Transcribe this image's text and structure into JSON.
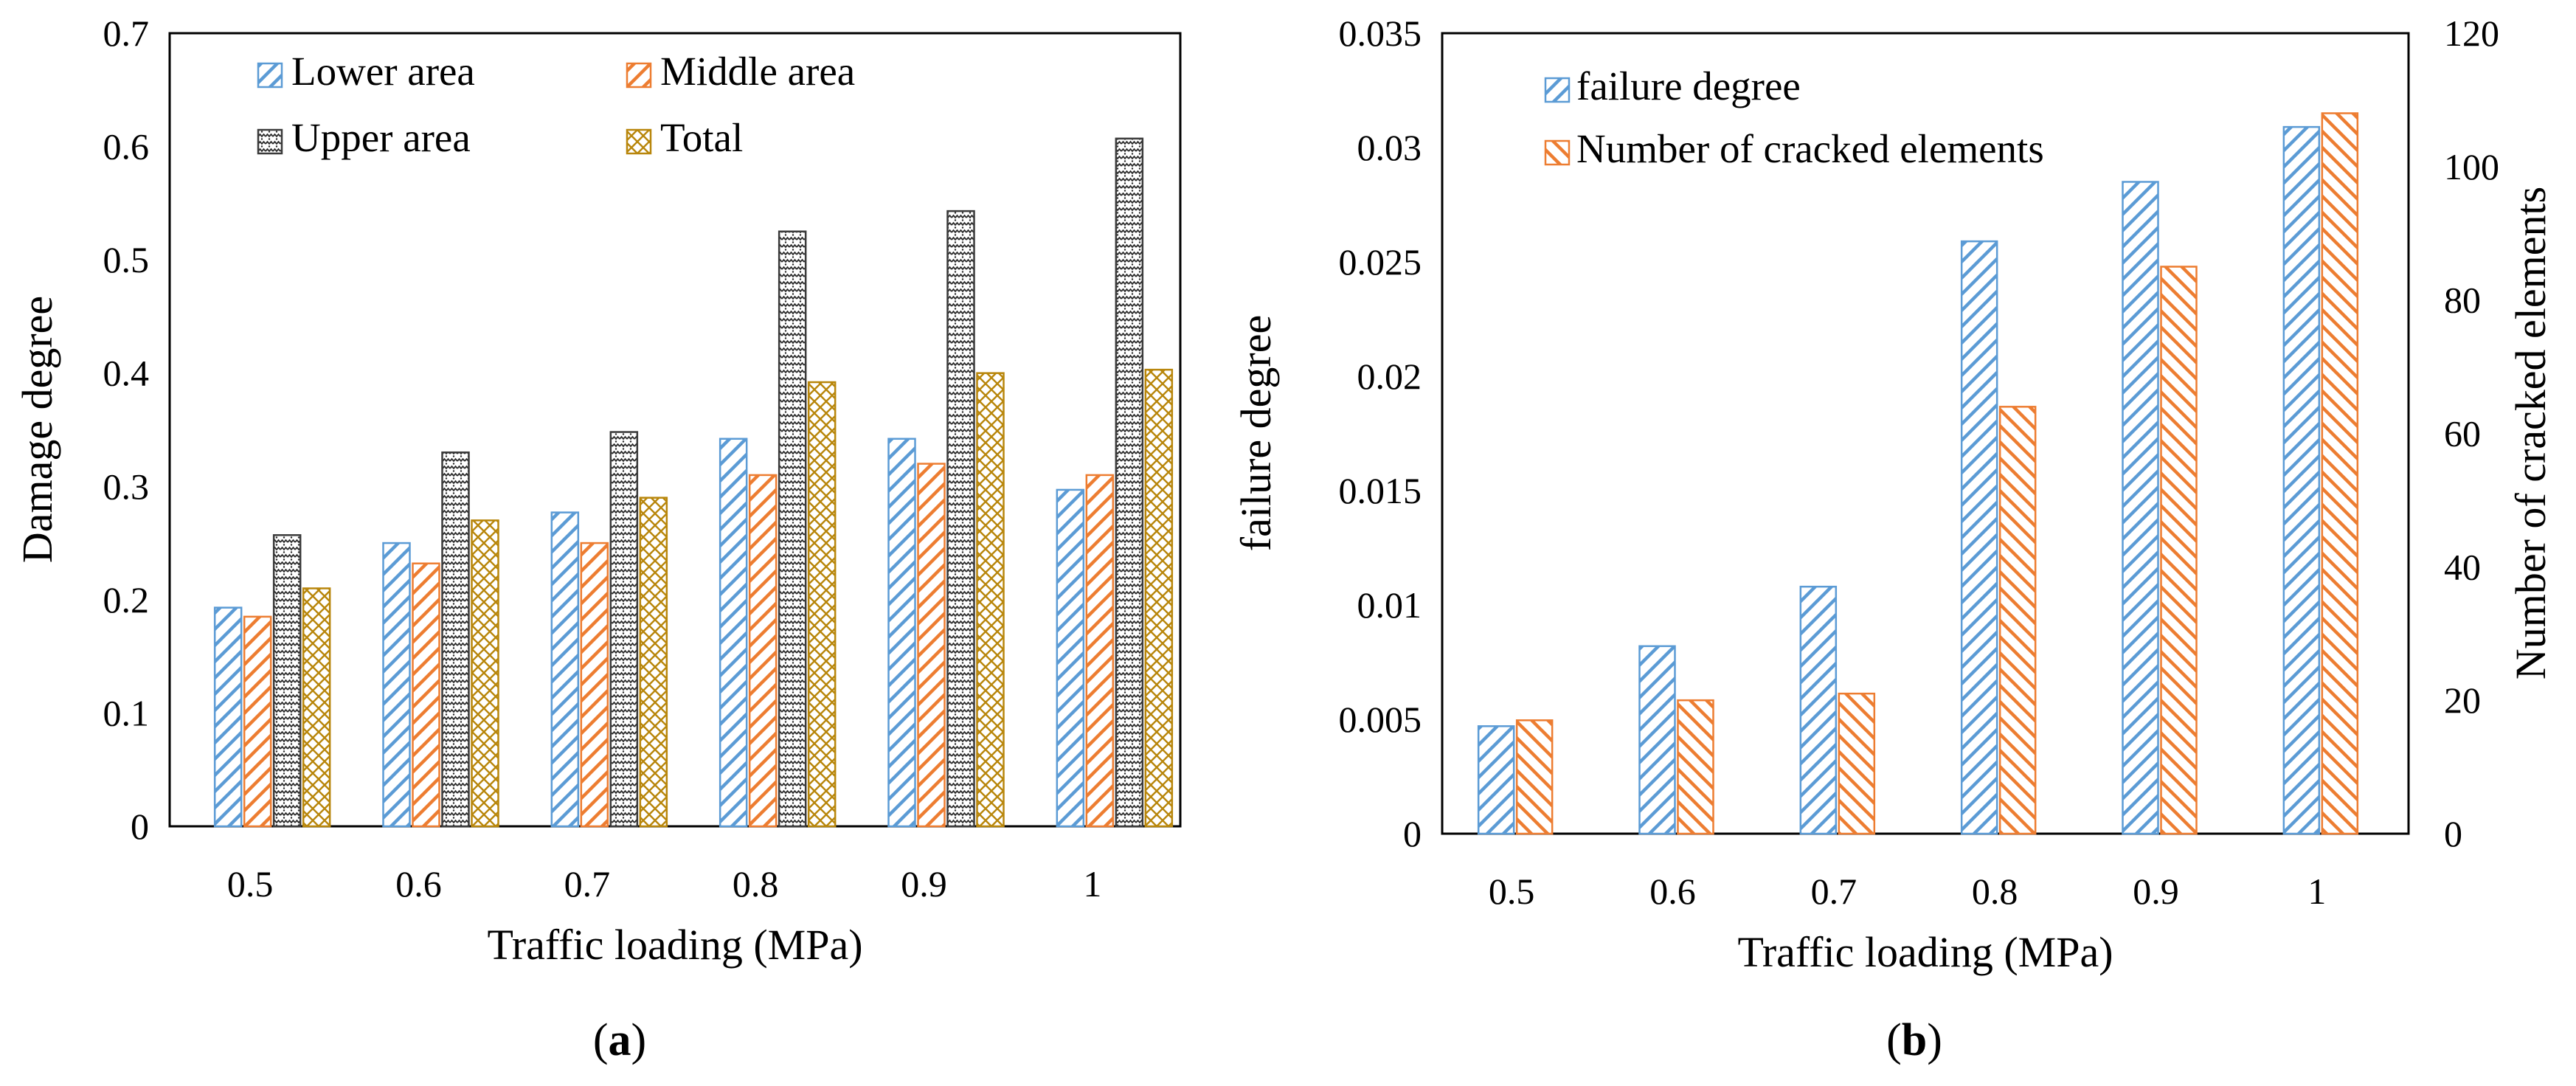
{
  "figure": {
    "panel_a_label": "(a)",
    "panel_b_label": "(b)"
  },
  "chart_data": [
    {
      "type": "bar",
      "categories": [
        "0.5",
        "0.6",
        "0.7",
        "0.8",
        "0.9",
        "1"
      ],
      "series": [
        {
          "name": "Lower area",
          "values": [
            0.193,
            0.25,
            0.277,
            0.342,
            0.342,
            0.297
          ],
          "color": "#5b9bd5",
          "pattern": "diag-up"
        },
        {
          "name": "Middle area",
          "values": [
            0.185,
            0.232,
            0.25,
            0.31,
            0.32,
            0.31
          ],
          "color": "#ed7d31",
          "pattern": "diag-up"
        },
        {
          "name": "Upper area",
          "values": [
            0.257,
            0.33,
            0.348,
            0.525,
            0.543,
            0.607
          ],
          "color": "#3a3a3a",
          "pattern": "dots"
        },
        {
          "name": "Total",
          "values": [
            0.21,
            0.27,
            0.29,
            0.392,
            0.4,
            0.403
          ],
          "color": "#b8860b",
          "pattern": "cross"
        }
      ],
      "xlabel": "Traffic loading (MPa)",
      "ylabel": "Damage degree",
      "ylim": [
        0,
        0.7
      ],
      "yticks": [
        "0",
        "0.1",
        "0.2",
        "0.3",
        "0.4",
        "0.5",
        "0.6",
        "0.7"
      ],
      "legend_position": "top-left"
    },
    {
      "type": "bar",
      "categories": [
        "0.5",
        "0.6",
        "0.7",
        "0.8",
        "0.9",
        "1"
      ],
      "series": [
        {
          "name": "failure degree",
          "values": [
            0.0047,
            0.0082,
            0.0108,
            0.0259,
            0.0285,
            0.0309
          ],
          "axis": "left",
          "color": "#5b9bd5",
          "pattern": "diag-up"
        },
        {
          "name": "Number of cracked elements",
          "values": [
            17,
            20,
            21,
            64,
            85,
            108
          ],
          "axis": "right",
          "color": "#ed7d31",
          "pattern": "diag-down"
        }
      ],
      "xlabel": "Traffic loading (MPa)",
      "ylabel": "failure degree",
      "ylabel_right": "Number of cracked elements",
      "ylim": [
        0,
        0.035
      ],
      "ylim_right": [
        0,
        120
      ],
      "yticks": [
        "0",
        "0.005",
        "0.01",
        "0.015",
        "0.02",
        "0.025",
        "0.03",
        "0.035"
      ],
      "yticks_right": [
        "0",
        "20",
        "40",
        "60",
        "80",
        "100",
        "120"
      ],
      "legend_position": "top-left"
    }
  ]
}
